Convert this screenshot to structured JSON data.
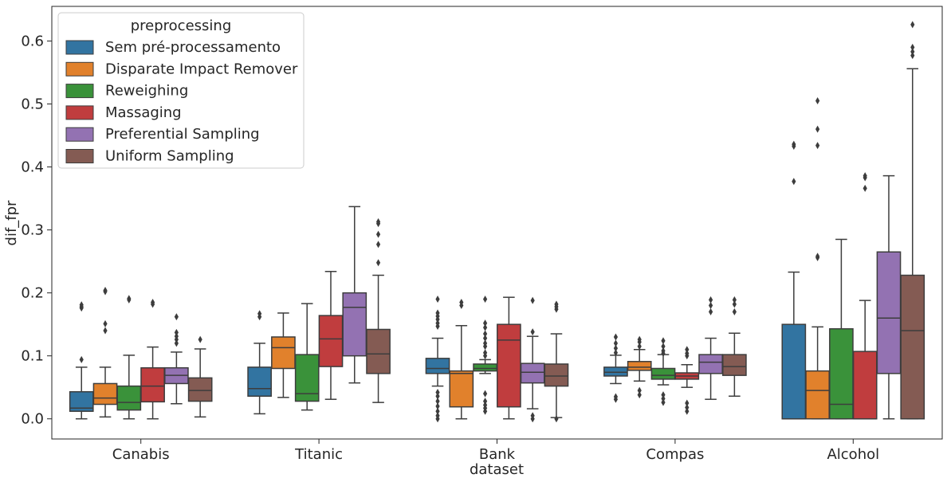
{
  "chart_data": {
    "type": "box",
    "xlabel": "dataset",
    "ylabel": "dif_fpr",
    "ylim": [
      -0.032,
      0.655
    ],
    "yticks": [
      "0.0",
      "0.1",
      "0.2",
      "0.3",
      "0.4",
      "0.5",
      "0.6"
    ],
    "ytick_values": [
      0,
      0.1,
      0.2,
      0.3,
      0.4,
      0.5,
      0.6
    ],
    "categories": [
      "Canabis",
      "Titanic",
      "Bank",
      "Compas",
      "Alcohol"
    ],
    "legend": {
      "title": "preprocessing",
      "placement": "upper-left"
    },
    "series": [
      {
        "name": "Sem pré-processamento",
        "color": "#3274a1",
        "boxes": [
          {
            "whislo": 0.0,
            "q1": 0.012,
            "med": 0.017,
            "q3": 0.043,
            "whishi": 0.082,
            "fliers": [
              0.094,
              0.176,
              0.178,
              0.181
            ]
          },
          {
            "whislo": 0.008,
            "q1": 0.036,
            "med": 0.048,
            "q3": 0.082,
            "whishi": 0.12,
            "fliers": [
              0.162,
              0.167
            ]
          },
          {
            "whislo": 0.052,
            "q1": 0.072,
            "med": 0.08,
            "q3": 0.096,
            "whishi": 0.128,
            "fliers": [
              0.0,
              0.005,
              0.012,
              0.02,
              0.028,
              0.036,
              0.042,
              0.147,
              0.152,
              0.158,
              0.163,
              0.168,
              0.19
            ]
          },
          {
            "whislo": 0.056,
            "q1": 0.068,
            "med": 0.074,
            "q3": 0.082,
            "whishi": 0.101,
            "fliers": [
              0.031,
              0.035,
              0.105,
              0.112,
              0.12,
              0.13
            ]
          },
          {
            "whislo": 0.0,
            "q1": 0.0,
            "med": 0.0,
            "q3": 0.15,
            "whishi": 0.233,
            "fliers": [
              0.377,
              0.433,
              0.436
            ]
          }
        ]
      },
      {
        "name": "Disparate Impact Remover",
        "color": "#e1812c",
        "boxes": [
          {
            "whislo": 0.003,
            "q1": 0.023,
            "med": 0.033,
            "q3": 0.056,
            "whishi": 0.082,
            "fliers": [
              0.14,
              0.151,
              0.202,
              0.204
            ]
          },
          {
            "whislo": 0.034,
            "q1": 0.08,
            "med": 0.113,
            "q3": 0.13,
            "whishi": 0.168,
            "fliers": []
          },
          {
            "whislo": 0.0,
            "q1": 0.019,
            "med": 0.072,
            "q3": 0.076,
            "whishi": 0.148,
            "fliers": [
              0.18,
              0.185
            ]
          },
          {
            "whislo": 0.06,
            "q1": 0.077,
            "med": 0.082,
            "q3": 0.091,
            "whishi": 0.11,
            "fliers": [
              0.038,
              0.045,
              0.115,
              0.122,
              0.126
            ]
          },
          {
            "whislo": 0.0,
            "q1": 0.0,
            "med": 0.045,
            "q3": 0.076,
            "whishi": 0.146,
            "fliers": [
              0.256,
              0.258,
              0.434,
              0.46,
              0.505
            ]
          }
        ]
      },
      {
        "name": "Reweighing",
        "color": "#3a923a",
        "boxes": [
          {
            "whislo": 0.0,
            "q1": 0.014,
            "med": 0.026,
            "q3": 0.052,
            "whishi": 0.101,
            "fliers": [
              0.189,
              0.191
            ]
          },
          {
            "whislo": 0.014,
            "q1": 0.028,
            "med": 0.04,
            "q3": 0.102,
            "whishi": 0.183,
            "fliers": []
          },
          {
            "whislo": 0.072,
            "q1": 0.076,
            "med": 0.08,
            "q3": 0.087,
            "whishi": 0.094,
            "fliers": [
              0.012,
              0.017,
              0.022,
              0.028,
              0.04,
              0.1,
              0.105,
              0.115,
              0.12,
              0.128,
              0.135,
              0.145,
              0.152,
              0.19
            ]
          },
          {
            "whislo": 0.054,
            "q1": 0.063,
            "med": 0.069,
            "q3": 0.08,
            "whishi": 0.102,
            "fliers": [
              0.026,
              0.032,
              0.038,
              0.104,
              0.108,
              0.115,
              0.124
            ]
          },
          {
            "whislo": 0.0,
            "q1": 0.0,
            "med": 0.023,
            "q3": 0.143,
            "whishi": 0.285,
            "fliers": []
          }
        ]
      },
      {
        "name": "Massaging",
        "color": "#c03d3e",
        "boxes": [
          {
            "whislo": 0.0,
            "q1": 0.027,
            "med": 0.052,
            "q3": 0.081,
            "whishi": 0.114,
            "fliers": [
              0.182,
              0.185
            ]
          },
          {
            "whislo": 0.031,
            "q1": 0.083,
            "med": 0.127,
            "q3": 0.164,
            "whishi": 0.234,
            "fliers": []
          },
          {
            "whislo": 0.0,
            "q1": 0.019,
            "med": 0.125,
            "q3": 0.15,
            "whishi": 0.193,
            "fliers": []
          },
          {
            "whislo": 0.05,
            "q1": 0.063,
            "med": 0.068,
            "q3": 0.073,
            "whishi": 0.086,
            "fliers": [
              0.012,
              0.018,
              0.025,
              0.1,
              0.104,
              0.11
            ]
          },
          {
            "whislo": 0.0,
            "q1": 0.0,
            "med": 0.0,
            "q3": 0.107,
            "whishi": 0.188,
            "fliers": [
              0.366,
              0.383,
              0.386
            ]
          }
        ]
      },
      {
        "name": "Preferential Sampling",
        "color": "#9372b2",
        "boxes": [
          {
            "whislo": 0.024,
            "q1": 0.056,
            "med": 0.069,
            "q3": 0.081,
            "whishi": 0.106,
            "fliers": [
              0.12,
              0.126,
              0.131,
              0.137,
              0.162
            ]
          },
          {
            "whislo": 0.057,
            "q1": 0.1,
            "med": 0.177,
            "q3": 0.2,
            "whishi": 0.337,
            "fliers": []
          },
          {
            "whislo": 0.016,
            "q1": 0.057,
            "med": 0.074,
            "q3": 0.088,
            "whishi": 0.131,
            "fliers": [
              0.0,
              0.005,
              0.138,
              0.188
            ]
          },
          {
            "whislo": 0.031,
            "q1": 0.072,
            "med": 0.09,
            "q3": 0.102,
            "whishi": 0.128,
            "fliers": [
              0.17,
              0.18,
              0.189
            ]
          },
          {
            "whislo": 0.0,
            "q1": 0.072,
            "med": 0.16,
            "q3": 0.265,
            "whishi": 0.386,
            "fliers": []
          }
        ]
      },
      {
        "name": "Uniform Sampling",
        "color": "#845b53",
        "boxes": [
          {
            "whislo": 0.003,
            "q1": 0.028,
            "med": 0.045,
            "q3": 0.065,
            "whishi": 0.111,
            "fliers": [
              0.126
            ]
          },
          {
            "whislo": 0.026,
            "q1": 0.072,
            "med": 0.103,
            "q3": 0.142,
            "whishi": 0.228,
            "fliers": [
              0.248,
              0.277,
              0.293,
              0.31,
              0.313
            ]
          },
          {
            "whislo": 0.002,
            "q1": 0.052,
            "med": 0.068,
            "q3": 0.087,
            "whishi": 0.135,
            "fliers": [
              0.0,
              0.174,
              0.178,
              0.182
            ]
          },
          {
            "whislo": 0.036,
            "q1": 0.069,
            "med": 0.083,
            "q3": 0.102,
            "whishi": 0.136,
            "fliers": [
              0.17,
              0.182,
              0.189
            ]
          },
          {
            "whislo": 0.0,
            "q1": 0.0,
            "med": 0.14,
            "q3": 0.228,
            "whishi": 0.556,
            "fliers": [
              0.577,
              0.583,
              0.59,
              0.626
            ]
          }
        ]
      }
    ]
  }
}
